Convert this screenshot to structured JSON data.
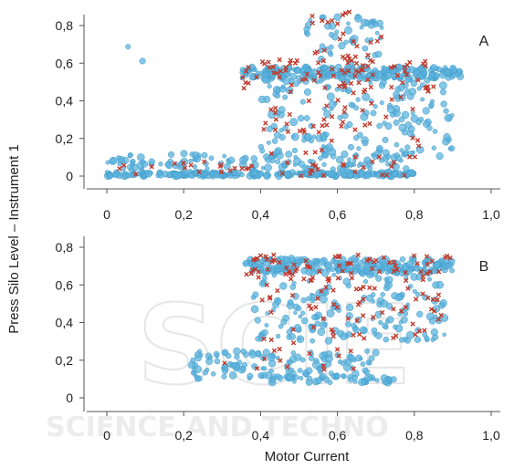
{
  "figure": {
    "ylabel": "Press Silo Level – Instrument 1",
    "xlabel": "Motor Current",
    "colors": {
      "series_circle": "#5bb3dd",
      "series_cross": "#c0392b"
    }
  },
  "chart_data": [
    {
      "type": "scatter",
      "panel_label": "A",
      "xlim": [
        0,
        1.0
      ],
      "ylim": [
        0,
        0.8
      ],
      "x_ticks": [
        "0",
        "0,2",
        "0,4",
        "0,6",
        "0,8",
        "1,0"
      ],
      "y_ticks": [
        "0",
        "0,2",
        "0,4",
        "0,6",
        "0,8"
      ],
      "grid": false,
      "series": [
        {
          "marker": "circle",
          "color": "#5bb3dd",
          "clusters": [
            {
              "x": [
                0.0,
                0.8
              ],
              "y": [
                0.0,
                0.02
              ],
              "n": 260
            },
            {
              "x": [
                0.0,
                0.8
              ],
              "y": [
                0.02,
                0.12
              ],
              "n": 130
            },
            {
              "x": [
                0.35,
                0.92
              ],
              "y": [
                0.52,
                0.58
              ],
              "n": 240
            },
            {
              "x": [
                0.4,
                0.9
              ],
              "y": [
                0.1,
                0.52
              ],
              "n": 180
            },
            {
              "x": [
                0.5,
                0.72
              ],
              "y": [
                0.6,
                0.85
              ],
              "n": 50
            },
            {
              "x": [
                0.05,
                0.1
              ],
              "y": [
                0.58,
                0.8
              ],
              "n": 2
            }
          ]
        },
        {
          "marker": "cross",
          "color": "#c0392b",
          "clusters": [
            {
              "x": [
                0.02,
                0.78
              ],
              "y": [
                0.0,
                0.08
              ],
              "n": 40
            },
            {
              "x": [
                0.35,
                0.85
              ],
              "y": [
                0.45,
                0.62
              ],
              "n": 80
            },
            {
              "x": [
                0.4,
                0.82
              ],
              "y": [
                0.1,
                0.45
              ],
              "n": 50
            },
            {
              "x": [
                0.5,
                0.72
              ],
              "y": [
                0.62,
                0.88
              ],
              "n": 25
            }
          ]
        }
      ]
    },
    {
      "type": "scatter",
      "panel_label": "B",
      "xlim": [
        0,
        1.0
      ],
      "ylim": [
        0,
        0.8
      ],
      "x_ticks": [
        "0",
        "0,2",
        "0,4",
        "0,6",
        "0,8",
        "1,0"
      ],
      "y_ticks": [
        "0",
        "0,2",
        "0,4",
        "0,6",
        "0,8"
      ],
      "grid": false,
      "series": [
        {
          "marker": "circle",
          "color": "#5bb3dd",
          "clusters": [
            {
              "x": [
                0.36,
                0.9
              ],
              "y": [
                0.66,
                0.74
              ],
              "n": 220
            },
            {
              "x": [
                0.38,
                0.88
              ],
              "y": [
                0.3,
                0.66
              ],
              "n": 170
            },
            {
              "x": [
                0.22,
                0.7
              ],
              "y": [
                0.1,
                0.25
              ],
              "n": 130
            },
            {
              "x": [
                0.4,
                0.75
              ],
              "y": [
                0.08,
                0.12
              ],
              "n": 40
            }
          ]
        },
        {
          "marker": "cross",
          "color": "#c0392b",
          "clusters": [
            {
              "x": [
                0.36,
                0.9
              ],
              "y": [
                0.62,
                0.76
              ],
              "n": 80
            },
            {
              "x": [
                0.4,
                0.88
              ],
              "y": [
                0.3,
                0.6
              ],
              "n": 60
            },
            {
              "x": [
                0.3,
                0.7
              ],
              "y": [
                0.15,
                0.3
              ],
              "n": 15
            }
          ]
        }
      ]
    }
  ]
}
